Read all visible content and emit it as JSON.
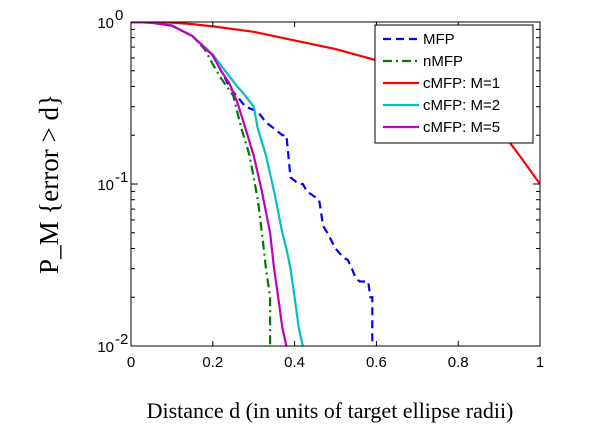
{
  "chart_data": {
    "type": "line",
    "xlabel": "Distance d (in units of target ellipse radii)",
    "ylabel": "P_M {error > d}",
    "xlim": [
      0,
      1
    ],
    "ylim": [
      0.01,
      1
    ],
    "y_scale": "log",
    "grid": false,
    "legend_position": "top-right",
    "x_ticks": [
      "0",
      "0.2",
      "0.4",
      "0.6",
      "0.8",
      "1"
    ],
    "y_ticks": [
      {
        "base": "10",
        "exp": "0"
      },
      {
        "base": "10",
        "exp": "-1"
      },
      {
        "base": "10",
        "exp": "-2"
      }
    ],
    "series": [
      {
        "name": "MFP",
        "color": "#0000ff",
        "dash": "dashed",
        "points": [
          [
            0,
            1
          ],
          [
            0.05,
            0.99
          ],
          [
            0.1,
            0.95
          ],
          [
            0.15,
            0.82
          ],
          [
            0.2,
            0.62
          ],
          [
            0.23,
            0.45
          ],
          [
            0.24,
            0.4
          ],
          [
            0.25,
            0.37
          ],
          [
            0.28,
            0.3
          ],
          [
            0.31,
            0.28
          ],
          [
            0.33,
            0.24
          ],
          [
            0.35,
            0.22
          ],
          [
            0.37,
            0.2
          ],
          [
            0.38,
            0.2
          ],
          [
            0.39,
            0.11
          ],
          [
            0.41,
            0.1
          ],
          [
            0.42,
            0.1
          ],
          [
            0.43,
            0.09
          ],
          [
            0.46,
            0.08
          ],
          [
            0.47,
            0.055
          ],
          [
            0.48,
            0.05
          ],
          [
            0.5,
            0.04
          ],
          [
            0.52,
            0.035
          ],
          [
            0.53,
            0.034
          ],
          [
            0.54,
            0.03
          ],
          [
            0.55,
            0.026
          ],
          [
            0.56,
            0.025
          ],
          [
            0.58,
            0.025
          ],
          [
            0.585,
            0.02
          ],
          [
            0.59,
            0.02
          ],
          [
            0.59,
            0.01
          ]
        ]
      },
      {
        "name": "nMFP",
        "color": "#007a00",
        "dash": "dashdot",
        "points": [
          [
            0,
            1
          ],
          [
            0.05,
            0.99
          ],
          [
            0.1,
            0.95
          ],
          [
            0.15,
            0.82
          ],
          [
            0.18,
            0.68
          ],
          [
            0.2,
            0.55
          ],
          [
            0.22,
            0.45
          ],
          [
            0.25,
            0.35
          ],
          [
            0.27,
            0.22
          ],
          [
            0.29,
            0.15
          ],
          [
            0.31,
            0.08
          ],
          [
            0.32,
            0.05
          ],
          [
            0.33,
            0.03
          ],
          [
            0.34,
            0.02
          ],
          [
            0.34,
            0.01
          ]
        ]
      },
      {
        "name": "cMFP: M=1",
        "color": "#ff0000",
        "dash": "solid",
        "points": [
          [
            0,
            1
          ],
          [
            0.05,
            1
          ],
          [
            0.1,
            0.99
          ],
          [
            0.15,
            0.97
          ],
          [
            0.2,
            0.94
          ],
          [
            0.3,
            0.87
          ],
          [
            0.4,
            0.77
          ],
          [
            0.5,
            0.68
          ],
          [
            0.6,
            0.58
          ],
          [
            0.7,
            0.47
          ],
          [
            0.8,
            0.35
          ],
          [
            0.9,
            0.22
          ],
          [
            0.95,
            0.15
          ],
          [
            1,
            0.1
          ]
        ]
      },
      {
        "name": "cMFP: M=2",
        "color": "#00c0c0",
        "dash": "solid",
        "points": [
          [
            0,
            1
          ],
          [
            0.05,
            0.99
          ],
          [
            0.1,
            0.95
          ],
          [
            0.15,
            0.82
          ],
          [
            0.2,
            0.63
          ],
          [
            0.23,
            0.5
          ],
          [
            0.26,
            0.4
          ],
          [
            0.28,
            0.35
          ],
          [
            0.3,
            0.3
          ],
          [
            0.31,
            0.22
          ],
          [
            0.33,
            0.15
          ],
          [
            0.35,
            0.09
          ],
          [
            0.37,
            0.05
          ],
          [
            0.38,
            0.04
          ],
          [
            0.39,
            0.03
          ],
          [
            0.4,
            0.02
          ],
          [
            0.41,
            0.013
          ],
          [
            0.42,
            0.01
          ]
        ]
      },
      {
        "name": "cMFP: M=5",
        "color": "#c000c0",
        "dash": "solid",
        "points": [
          [
            0,
            1
          ],
          [
            0.05,
            0.99
          ],
          [
            0.1,
            0.95
          ],
          [
            0.15,
            0.82
          ],
          [
            0.2,
            0.62
          ],
          [
            0.22,
            0.5
          ],
          [
            0.24,
            0.42
          ],
          [
            0.26,
            0.32
          ],
          [
            0.28,
            0.22
          ],
          [
            0.3,
            0.15
          ],
          [
            0.32,
            0.09
          ],
          [
            0.34,
            0.05
          ],
          [
            0.35,
            0.03
          ],
          [
            0.36,
            0.02
          ],
          [
            0.37,
            0.013
          ],
          [
            0.38,
            0.01
          ]
        ]
      }
    ]
  }
}
